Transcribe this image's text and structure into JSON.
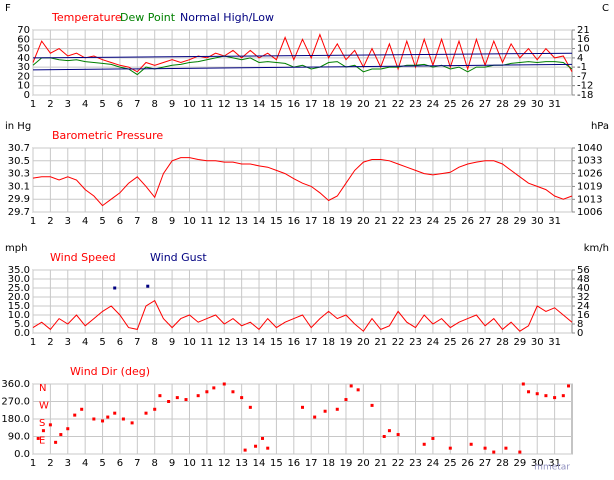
{
  "chart_data": [
    {
      "type": "line",
      "ylabel": "F",
      "y2label": "C",
      "xlim": [
        1,
        32
      ],
      "xticks": [
        1,
        2,
        3,
        4,
        5,
        6,
        7,
        8,
        9,
        10,
        11,
        12,
        13,
        14,
        15,
        16,
        17,
        18,
        19,
        20,
        21,
        22,
        23,
        24,
        25,
        26,
        27,
        28,
        29,
        30,
        31
      ],
      "ylim": [
        0,
        70
      ],
      "yticks": [
        0,
        10,
        20,
        30,
        40,
        50,
        60,
        70
      ],
      "y2lim": [
        -17.8,
        21.1
      ],
      "y2ticks": [
        {
          "value": 21.1,
          "label": "21"
        },
        {
          "value": 15.6,
          "label": "16"
        },
        {
          "value": 10,
          "label": "10"
        },
        {
          "value": 4.4,
          "label": "4"
        },
        {
          "value": -1.1,
          "label": "-1"
        },
        {
          "value": -6.7,
          "label": "-7"
        },
        {
          "value": -12.2,
          "label": "-12"
        },
        {
          "value": -17.8,
          "label": "-18"
        }
      ],
      "grid": true,
      "x": [
        1,
        1.5,
        2,
        2.5,
        3,
        3.5,
        4,
        4.5,
        5,
        5.5,
        6,
        6.5,
        7,
        7.5,
        8,
        8.5,
        9,
        9.5,
        10,
        10.5,
        11,
        11.5,
        12,
        12.5,
        13,
        13.5,
        14,
        14.5,
        15,
        15.5,
        16,
        16.5,
        17,
        17.5,
        18,
        18.5,
        19,
        19.5,
        20,
        20.5,
        21,
        21.5,
        22,
        22.5,
        23,
        23.5,
        24,
        24.5,
        25,
        25.5,
        26,
        26.5,
        27,
        27.5,
        28,
        28.5,
        29,
        29.5,
        30,
        30.5,
        31,
        31.5,
        32
      ],
      "series": [
        {
          "name": "Temperature",
          "color": "#ff0000",
          "values": [
            35,
            58,
            45,
            50,
            42,
            45,
            40,
            42,
            38,
            35,
            32,
            30,
            25,
            35,
            32,
            35,
            38,
            35,
            38,
            42,
            40,
            45,
            42,
            48,
            40,
            48,
            40,
            45,
            38,
            62,
            38,
            60,
            40,
            65,
            40,
            55,
            38,
            48,
            30,
            50,
            30,
            55,
            28,
            58,
            30,
            60,
            32,
            60,
            30,
            58,
            28,
            60,
            32,
            58,
            35,
            55,
            40,
            50,
            38,
            50,
            40,
            42,
            25
          ]
        },
        {
          "name": "Dew Point",
          "color": "#008000",
          "values": [
            32,
            40,
            40,
            38,
            37,
            38,
            36,
            35,
            34,
            33,
            30,
            28,
            22,
            30,
            28,
            30,
            32,
            33,
            35,
            36,
            38,
            40,
            42,
            40,
            38,
            40,
            35,
            36,
            35,
            34,
            30,
            32,
            28,
            30,
            35,
            36,
            30,
            32,
            25,
            28,
            28,
            30,
            30,
            32,
            32,
            33,
            30,
            32,
            28,
            30,
            25,
            30,
            30,
            32,
            32,
            34,
            35,
            36,
            35,
            36,
            36,
            35,
            28
          ]
        },
        {
          "name": "Normal High/Low",
          "color": "#000080",
          "x": [
            1,
            32
          ],
          "values": [
            40,
            45
          ]
        },
        {
          "color": "#000080",
          "x": [
            1,
            32
          ],
          "values": [
            27,
            33
          ]
        }
      ]
    },
    {
      "type": "line",
      "ylabel": "in Hg",
      "y2label": "hPa",
      "xlim": [
        1,
        32
      ],
      "xticks": [
        1,
        2,
        3,
        4,
        5,
        6,
        7,
        8,
        9,
        10,
        11,
        12,
        13,
        14,
        15,
        16,
        17,
        18,
        19,
        20,
        21,
        22,
        23,
        24,
        25,
        26,
        27,
        28,
        29,
        30,
        31
      ],
      "ylim": [
        29.7,
        30.7
      ],
      "yticks": [
        29.7,
        29.9,
        30.1,
        30.3,
        30.5,
        30.7
      ],
      "y2lim": [
        1005.8,
        1039.6
      ],
      "y2ticks": [
        {
          "value": 1005.8,
          "label": "1006"
        },
        {
          "value": 1012.5,
          "label": "1013"
        },
        {
          "value": 1019.3,
          "label": "1019"
        },
        {
          "value": 1026.1,
          "label": "1026"
        },
        {
          "value": 1032.9,
          "label": "1033"
        },
        {
          "value": 1039.6,
          "label": "1040"
        }
      ],
      "grid": true,
      "x": [
        1,
        1.5,
        2,
        2.5,
        3,
        3.5,
        4,
        4.5,
        5,
        5.5,
        6,
        6.5,
        7,
        7.5,
        8,
        8.5,
        9,
        9.5,
        10,
        10.5,
        11,
        11.5,
        12,
        12.5,
        13,
        13.5,
        14,
        14.5,
        15,
        15.5,
        16,
        16.5,
        17,
        17.5,
        18,
        18.5,
        19,
        19.5,
        20,
        20.5,
        21,
        21.5,
        22,
        22.5,
        23,
        23.5,
        24,
        24.5,
        25,
        25.5,
        26,
        26.5,
        27,
        27.5,
        28,
        28.5,
        29,
        29.5,
        30,
        30.5,
        31,
        31.5,
        32
      ],
      "series": [
        {
          "name": "Barometric Pressure",
          "color": "#ff0000",
          "values": [
            30.23,
            30.25,
            30.25,
            30.2,
            30.25,
            30.2,
            30.05,
            29.95,
            29.8,
            29.9,
            30.0,
            30.15,
            30.25,
            30.1,
            29.93,
            30.3,
            30.5,
            30.55,
            30.55,
            30.52,
            30.5,
            30.5,
            30.48,
            30.48,
            30.45,
            30.45,
            30.42,
            30.4,
            30.35,
            30.3,
            30.22,
            30.15,
            30.1,
            30.0,
            29.88,
            29.95,
            30.15,
            30.35,
            30.48,
            30.52,
            30.52,
            30.5,
            30.45,
            30.4,
            30.35,
            30.3,
            30.28,
            30.3,
            30.32,
            30.4,
            30.45,
            30.48,
            30.5,
            30.5,
            30.45,
            30.35,
            30.25,
            30.15,
            30.1,
            30.05,
            29.95,
            29.9,
            29.95
          ]
        }
      ]
    },
    {
      "type": "line",
      "ylabel": "mph",
      "y2label": "km/h",
      "xlim": [
        1,
        32
      ],
      "xticks": [
        1,
        2,
        3,
        4,
        5,
        6,
        7,
        8,
        9,
        10,
        11,
        12,
        13,
        14,
        15,
        16,
        17,
        18,
        19,
        20,
        21,
        22,
        23,
        24,
        25,
        26,
        27,
        28,
        29,
        30,
        31
      ],
      "ylim": [
        0,
        35
      ],
      "yticks": [
        {
          "value": 0,
          "label": "0.0"
        },
        {
          "value": 5,
          "label": "5.0"
        },
        {
          "value": 10,
          "label": "10.0"
        },
        {
          "value": 15,
          "label": "15.0"
        },
        {
          "value": 20,
          "label": "20.0"
        },
        {
          "value": 25,
          "label": "25.0"
        },
        {
          "value": 30,
          "label": "30.0"
        },
        {
          "value": 35,
          "label": "35.0"
        }
      ],
      "y2lim": [
        0,
        56.3
      ],
      "y2ticks": [
        0,
        {
          "value": 8.05,
          "label": "8"
        },
        {
          "value": 16.1,
          "label": "16"
        },
        {
          "value": 24.1,
          "label": "24"
        },
        {
          "value": 32.2,
          "label": "32"
        },
        {
          "value": 40.2,
          "label": "40"
        },
        {
          "value": 48.3,
          "label": "48"
        },
        {
          "value": 56.3,
          "label": "56"
        }
      ],
      "grid": true,
      "x": [
        1,
        1.5,
        2,
        2.5,
        3,
        3.5,
        4,
        4.5,
        5,
        5.5,
        6,
        6.5,
        7,
        7.5,
        8,
        8.5,
        9,
        9.5,
        10,
        10.5,
        11,
        11.5,
        12,
        12.5,
        13,
        13.5,
        14,
        14.5,
        15,
        15.5,
        16,
        16.5,
        17,
        17.5,
        18,
        18.5,
        19,
        19.5,
        20,
        20.5,
        21,
        21.5,
        22,
        22.5,
        23,
        23.5,
        24,
        24.5,
        25,
        25.5,
        26,
        26.5,
        27,
        27.5,
        28,
        28.5,
        29,
        29.5,
        30,
        30.5,
        31,
        31.5,
        32
      ],
      "series": [
        {
          "name": "Wind Speed",
          "color": "#ff0000",
          "values": [
            3,
            6,
            2,
            8,
            5,
            10,
            4,
            8,
            12,
            15,
            10,
            3,
            2,
            15,
            18,
            8,
            3,
            8,
            10,
            6,
            8,
            10,
            5,
            8,
            4,
            6,
            2,
            8,
            3,
            6,
            8,
            10,
            3,
            8,
            12,
            8,
            10,
            5,
            1,
            8,
            2,
            4,
            12,
            6,
            3,
            10,
            5,
            8,
            3,
            6,
            8,
            10,
            4,
            8,
            2,
            6,
            1,
            4,
            15,
            12,
            14,
            10,
            6
          ]
        },
        {
          "name": "Wind Gust",
          "color": "#000080",
          "marker": true,
          "x": [
            5.7,
            7.6
          ],
          "values": [
            25,
            26
          ]
        }
      ]
    },
    {
      "type": "scatter",
      "xlim": [
        1,
        32
      ],
      "xticks": [
        1,
        2,
        3,
        4,
        5,
        6,
        7,
        8,
        9,
        10,
        11,
        12,
        13,
        14,
        15,
        16,
        17,
        18,
        19,
        20,
        21,
        22,
        23,
        24,
        25,
        26,
        27,
        28,
        29,
        30,
        31
      ],
      "ylim": [
        0,
        360
      ],
      "yticks": [
        {
          "value": 0,
          "label": "0.0"
        },
        {
          "value": 90,
          "label": "90.0"
        },
        {
          "value": 180,
          "label": "180.0"
        },
        {
          "value": 270,
          "label": "270.0"
        },
        {
          "value": 360,
          "label": "360.0"
        }
      ],
      "compass": [
        {
          "value": 90,
          "label": "E"
        },
        {
          "value": 180,
          "label": "S"
        },
        {
          "value": 270,
          "label": "W"
        },
        {
          "value": 360,
          "label": "N"
        }
      ],
      "grid": true,
      "watermark": "mmetar",
      "series": [
        {
          "name": "Wind Dir (deg)",
          "color": "#ff0000",
          "x": [
            1.3,
            1.6,
            2,
            2.3,
            2.6,
            3,
            3.4,
            3.8,
            4.5,
            5,
            5.3,
            5.7,
            6.2,
            6.7,
            7.5,
            8,
            8.3,
            8.8,
            9.3,
            9.8,
            10.5,
            11,
            11.4,
            12,
            12.5,
            13,
            13.5,
            13.2,
            13.8,
            14.2,
            14.5,
            16.5,
            17.2,
            17.8,
            18.5,
            19,
            19.3,
            19.7,
            20.5,
            21.2,
            21.5,
            22,
            23.5,
            24,
            25,
            26.2,
            27,
            27.5,
            28.2,
            29,
            29.2,
            29.5,
            30,
            30.5,
            31,
            31.5,
            31.8
          ],
          "values": [
            80,
            120,
            150,
            60,
            100,
            130,
            200,
            230,
            180,
            170,
            190,
            210,
            180,
            160,
            210,
            230,
            300,
            270,
            290,
            280,
            300,
            320,
            340,
            360,
            320,
            290,
            240,
            20,
            40,
            80,
            30,
            240,
            190,
            220,
            230,
            280,
            350,
            330,
            250,
            90,
            120,
            100,
            50,
            80,
            30,
            50,
            30,
            10,
            30,
            10,
            360,
            320,
            310,
            300,
            290,
            300,
            350
          ]
        }
      ]
    }
  ]
}
